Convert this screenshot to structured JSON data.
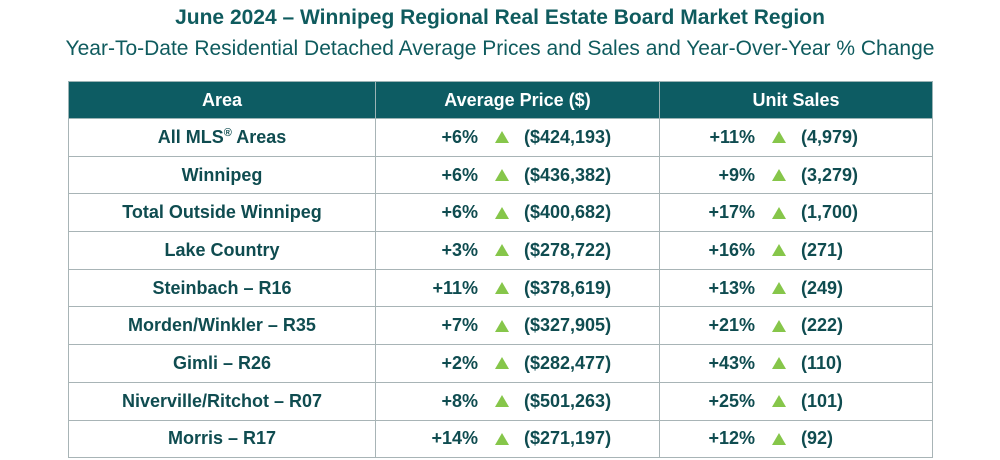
{
  "colors": {
    "header_bg": "#0d5c63",
    "text": "#0f5b5e",
    "up_arrow": "#86c64a"
  },
  "title": "June 2024 – Winnipeg Regional Real Estate Board Market Region",
  "subtitle": "Year-To-Date Residential Detached Average Prices and Sales and Year-Over-Year % Change",
  "chart_data": {
    "type": "table",
    "columns": [
      "Area",
      "Average Price ($)",
      "Unit Sales"
    ],
    "rows": [
      {
        "area": "All MLS",
        "area_sup": "®",
        "area_suffix": " Areas",
        "price_change": "+6%",
        "price": "($424,193)",
        "sales_change": "+11%",
        "sales": "(4,979)",
        "price_direction": "up",
        "sales_direction": "up"
      },
      {
        "area": "Winnipeg",
        "price_change": "+6%",
        "price": "($436,382)",
        "sales_change": "+9%",
        "sales": "(3,279)",
        "price_direction": "up",
        "sales_direction": "up"
      },
      {
        "area": "Total Outside Winnipeg",
        "price_change": "+6%",
        "price": "($400,682)",
        "sales_change": "+17%",
        "sales": "(1,700)",
        "price_direction": "up",
        "sales_direction": "up"
      },
      {
        "area": "Lake Country",
        "price_change": "+3%",
        "price": "($278,722)",
        "sales_change": "+16%",
        "sales": "(271)",
        "price_direction": "up",
        "sales_direction": "up"
      },
      {
        "area": "Steinbach – R16",
        "price_change": "+11%",
        "price": "($378,619)",
        "sales_change": "+13%",
        "sales": "(249)",
        "price_direction": "up",
        "sales_direction": "up"
      },
      {
        "area": "Morden/Winkler – R35",
        "price_change": "+7%",
        "price": "($327,905)",
        "sales_change": "+21%",
        "sales": "(222)",
        "price_direction": "up",
        "sales_direction": "up"
      },
      {
        "area": "Gimli – R26",
        "price_change": "+2%",
        "price": "($282,477)",
        "sales_change": "+43%",
        "sales": "(110)",
        "price_direction": "up",
        "sales_direction": "up"
      },
      {
        "area": "Niverville/Ritchot – R07",
        "price_change": "+8%",
        "price": "($501,263)",
        "sales_change": "+25%",
        "sales": "(101)",
        "price_direction": "up",
        "sales_direction": "up"
      },
      {
        "area": "Morris – R17",
        "price_change": "+14%",
        "price": "($271,197)",
        "sales_change": "+12%",
        "sales": "(92)",
        "price_direction": "up",
        "sales_direction": "up"
      }
    ]
  }
}
